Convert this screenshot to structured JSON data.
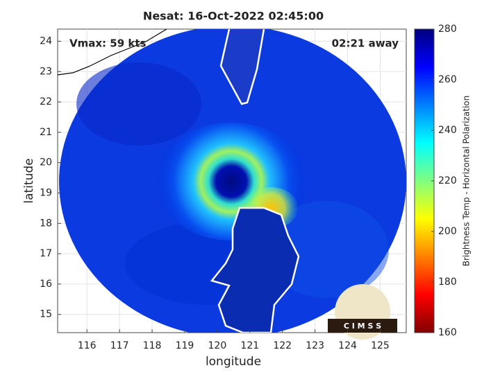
{
  "title": "Nesat: 16-Oct-2022 02:45:00",
  "annotations": {
    "vmax": "Vmax: 59 kts",
    "away": "02:21 away"
  },
  "logo": "C I M S S",
  "x_axis": {
    "label": "longitude",
    "lim": [
      115.1,
      125.8
    ],
    "ticks": [
      116,
      117,
      118,
      119,
      120,
      121,
      122,
      123,
      124,
      125
    ]
  },
  "y_axis": {
    "label": "latitude",
    "lim": [
      14.4,
      24.4
    ],
    "ticks": [
      15,
      16,
      17,
      18,
      19,
      20,
      21,
      22,
      23,
      24
    ]
  },
  "grid": true,
  "colorbar": {
    "label": "Brightness Temp - Horizontal Polarization",
    "lim": [
      160,
      280
    ],
    "ticks": [
      160,
      180,
      200,
      220,
      240,
      260,
      280
    ],
    "colors": [
      "#800000",
      "#ff0000",
      "#ff8000",
      "#ffff00",
      "#80ff80",
      "#00ffff",
      "#0080ff",
      "#0000ff",
      "#000080"
    ]
  }
}
